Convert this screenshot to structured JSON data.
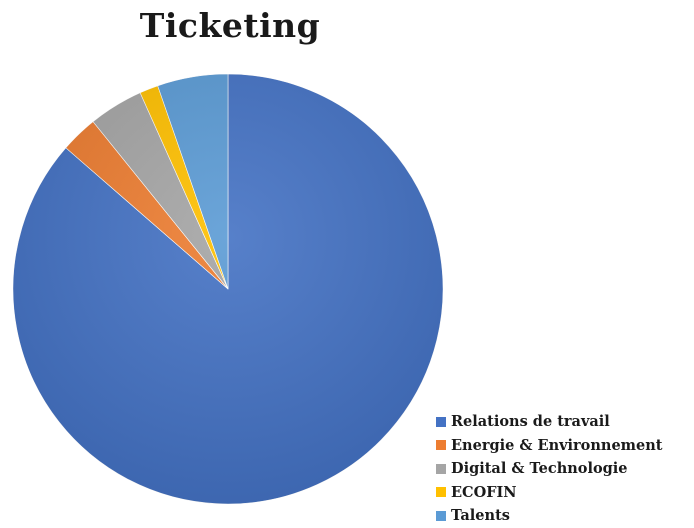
{
  "chart_data": {
    "type": "pie",
    "title": "Ticketing",
    "categories": [
      "Relations de travail",
      "Energie & Environnement",
      "Digital & Technologie",
      "ECOFIN",
      "Talents"
    ],
    "values": [
      86.4,
      2.8,
      4.1,
      1.4,
      5.3
    ],
    "unit": "%",
    "start_angle_deg": 0,
    "direction": "clockwise",
    "colors": [
      "#4472c4",
      "#ed7d31",
      "#a5a5a5",
      "#ffc000",
      "#5b9bd5"
    ],
    "legend_position": "bottom-right",
    "background": "#ffffff"
  }
}
